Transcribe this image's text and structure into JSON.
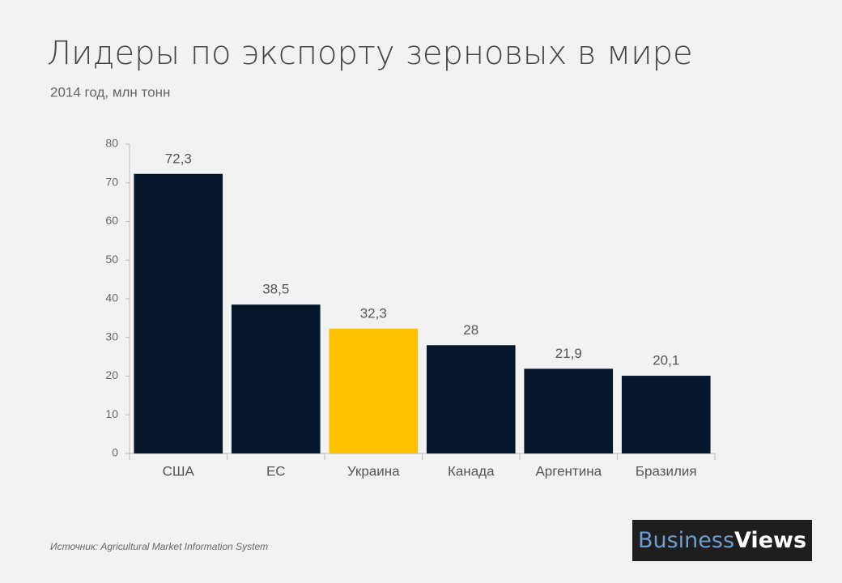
{
  "chart_data": {
    "type": "bar",
    "title": "Лидеры по экспорту зерновых в мире",
    "subtitle": "2014 год, млн тонн",
    "categories": [
      "США",
      "ЕС",
      "Украина",
      "Канада",
      "Аргентина",
      "Бразилия"
    ],
    "values": [
      72.3,
      38.5,
      32.3,
      28,
      21.9,
      20.1
    ],
    "value_labels": [
      "72,3",
      "38,5",
      "32,3",
      "28",
      "21,9",
      "20,1"
    ],
    "colors": [
      "#06172b",
      "#06172b",
      "#ffc000",
      "#06172b",
      "#06172b",
      "#06172b"
    ],
    "ylim": [
      0,
      80
    ],
    "yticks": [
      0,
      10,
      20,
      30,
      40,
      50,
      60,
      70,
      80
    ],
    "grid": false,
    "source": "Источник: Agricultural Market Information System"
  },
  "logo": {
    "part1": "Business",
    "part2": "Views"
  }
}
